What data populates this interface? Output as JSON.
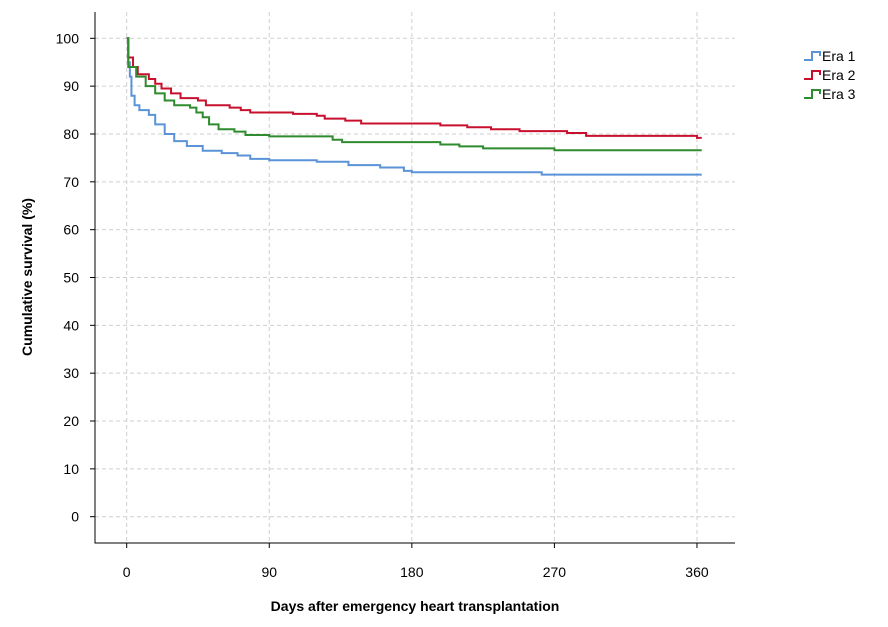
{
  "chart_data": {
    "type": "step",
    "x_label": "Days after emergency heart transplantation",
    "y_label": "Cumulative survival (%)",
    "xlim": [
      -20,
      384
    ],
    "ylim": [
      -5.5,
      105.5
    ],
    "xticks": [
      0,
      90,
      180,
      270,
      360
    ],
    "yticks": [
      0,
      10,
      20,
      30,
      40,
      50,
      60,
      70,
      80,
      90,
      100
    ],
    "grid": true,
    "legend": "outside-top-right",
    "series": [
      {
        "name": "Era 1",
        "color": "#5a93d8",
        "x": [
          0,
          1,
          2,
          3,
          5,
          8,
          14,
          18,
          24,
          30,
          38,
          48,
          60,
          70,
          78,
          90,
          120,
          140,
          160,
          175,
          180,
          262,
          363
        ],
        "values": [
          100,
          95,
          92,
          88,
          86,
          85,
          84,
          82,
          80,
          78.5,
          77.5,
          76.5,
          76,
          75.5,
          74.8,
          74.5,
          74.2,
          73.5,
          73,
          72.3,
          72,
          71.5,
          71.5
        ]
      },
      {
        "name": "Era 2",
        "color": "#c8102e",
        "x": [
          0,
          1,
          4,
          7,
          14,
          18,
          22,
          28,
          34,
          45,
          50,
          65,
          72,
          78,
          105,
          120,
          125,
          138,
          148,
          198,
          215,
          230,
          248,
          278,
          290,
          360,
          363
        ],
        "values": [
          100,
          96,
          94,
          92.5,
          91.5,
          90.5,
          89.5,
          88.5,
          87.5,
          87,
          86,
          85.5,
          85,
          84.5,
          84.2,
          83.8,
          83.2,
          82.8,
          82.2,
          81.8,
          81.4,
          81,
          80.6,
          80.2,
          79.6,
          79.2,
          79.2
        ]
      },
      {
        "name": "Era 3",
        "color": "#2e8b2e",
        "x": [
          0,
          1,
          6,
          12,
          18,
          24,
          30,
          40,
          44,
          48,
          52,
          58,
          68,
          75,
          90,
          130,
          136,
          198,
          210,
          225,
          270,
          363
        ],
        "values": [
          100,
          94,
          92,
          90,
          88.5,
          87,
          86,
          85.5,
          84.5,
          83.5,
          82,
          81,
          80.5,
          79.8,
          79.5,
          78.8,
          78.3,
          77.8,
          77.4,
          77,
          76.6,
          76.6
        ]
      }
    ]
  }
}
